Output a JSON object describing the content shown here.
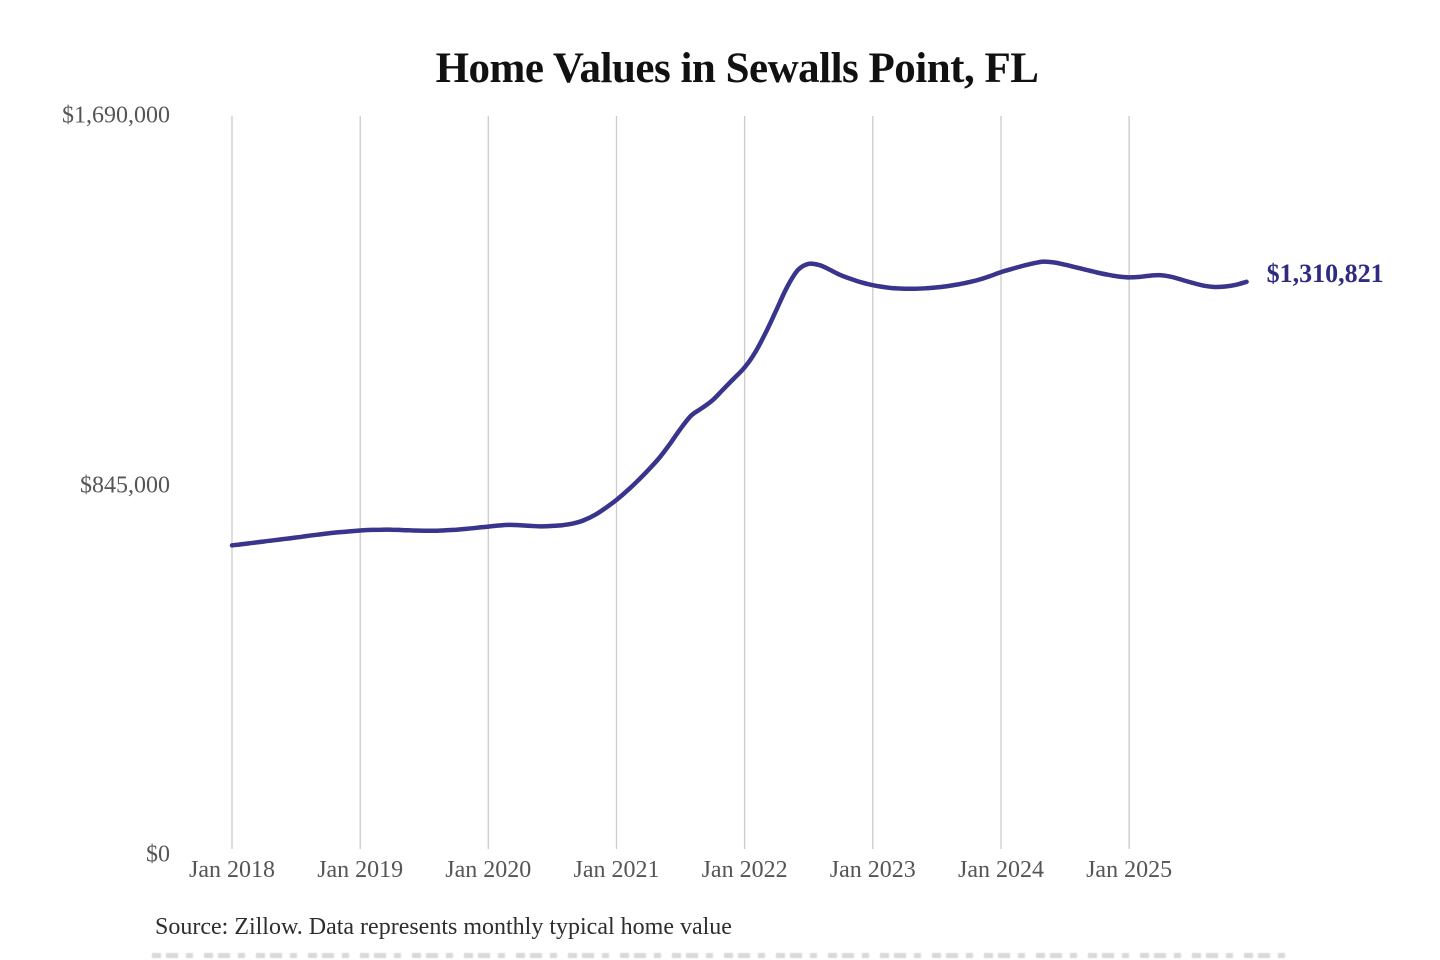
{
  "title": "Home Values in Sewalls Point, FL",
  "source": "Source: Zillow. Data represents monthly typical home value",
  "colors": {
    "line": "#39348c",
    "grid": "#cbcbcb",
    "axis_text": "#555555",
    "title_text": "#111111",
    "value_label": "#2f2b7f",
    "source_text": "#2e2e2e",
    "background": "#ffffff"
  },
  "chart_data": {
    "type": "line",
    "title": "Home Values in Sewalls Point, FL",
    "series_name": "Monthly typical home value",
    "unit": "USD",
    "frequency": "monthly",
    "start_month": "2018-01",
    "end_month": "2025-12",
    "xlabel": "",
    "ylabel": "",
    "ylim": [
      0,
      1690000
    ],
    "grid": "vertical-only",
    "legend": "none",
    "end_label": "$1,310,821",
    "latest_value": 1310821,
    "y_ticks": [
      {
        "label": "$1,690,000",
        "value": 1690000
      },
      {
        "label": "$845,000",
        "value": 845000
      },
      {
        "label": "$0",
        "value": 0
      }
    ],
    "x_ticks": [
      {
        "label": "Jan 2018",
        "month": 0
      },
      {
        "label": "Jan 2019",
        "month": 12
      },
      {
        "label": "Jan 2020",
        "month": 24
      },
      {
        "label": "Jan 2021",
        "month": 36
      },
      {
        "label": "Jan 2022",
        "month": 48
      },
      {
        "label": "Jan 2023",
        "month": 60
      },
      {
        "label": "Jan 2024",
        "month": 72
      },
      {
        "label": "Jan 2025",
        "month": 84
      }
    ],
    "values": [
      708000,
      711000,
      714000,
      717000,
      720000,
      723000,
      726000,
      729500,
      732500,
      735500,
      738000,
      740000,
      742000,
      743500,
      744000,
      744000,
      743000,
      742000,
      741500,
      741500,
      742500,
      744000,
      746000,
      748500,
      751000,
      753500,
      755000,
      754000,
      752500,
      751500,
      752500,
      754500,
      758500,
      766000,
      778000,
      794000,
      812000,
      833000,
      856000,
      881000,
      908000,
      940000,
      975000,
      1005000,
      1022000,
      1040000,
      1065000,
      1090000,
      1115000,
      1150000,
      1196000,
      1248000,
      1300000,
      1338000,
      1352000,
      1349000,
      1338000,
      1326000,
      1317000,
      1309000,
      1303000,
      1299000,
      1296000,
      1295000,
      1295000,
      1296000,
      1298000,
      1301000,
      1305000,
      1310000,
      1316000,
      1324000,
      1333000,
      1340000,
      1347000,
      1353000,
      1357000,
      1355000,
      1350000,
      1344000,
      1338000,
      1332000,
      1327000,
      1323000,
      1321000,
      1322000,
      1325000,
      1326000,
      1322000,
      1315000,
      1308000,
      1302000,
      1299000,
      1300000,
      1304000,
      1310821
    ]
  }
}
